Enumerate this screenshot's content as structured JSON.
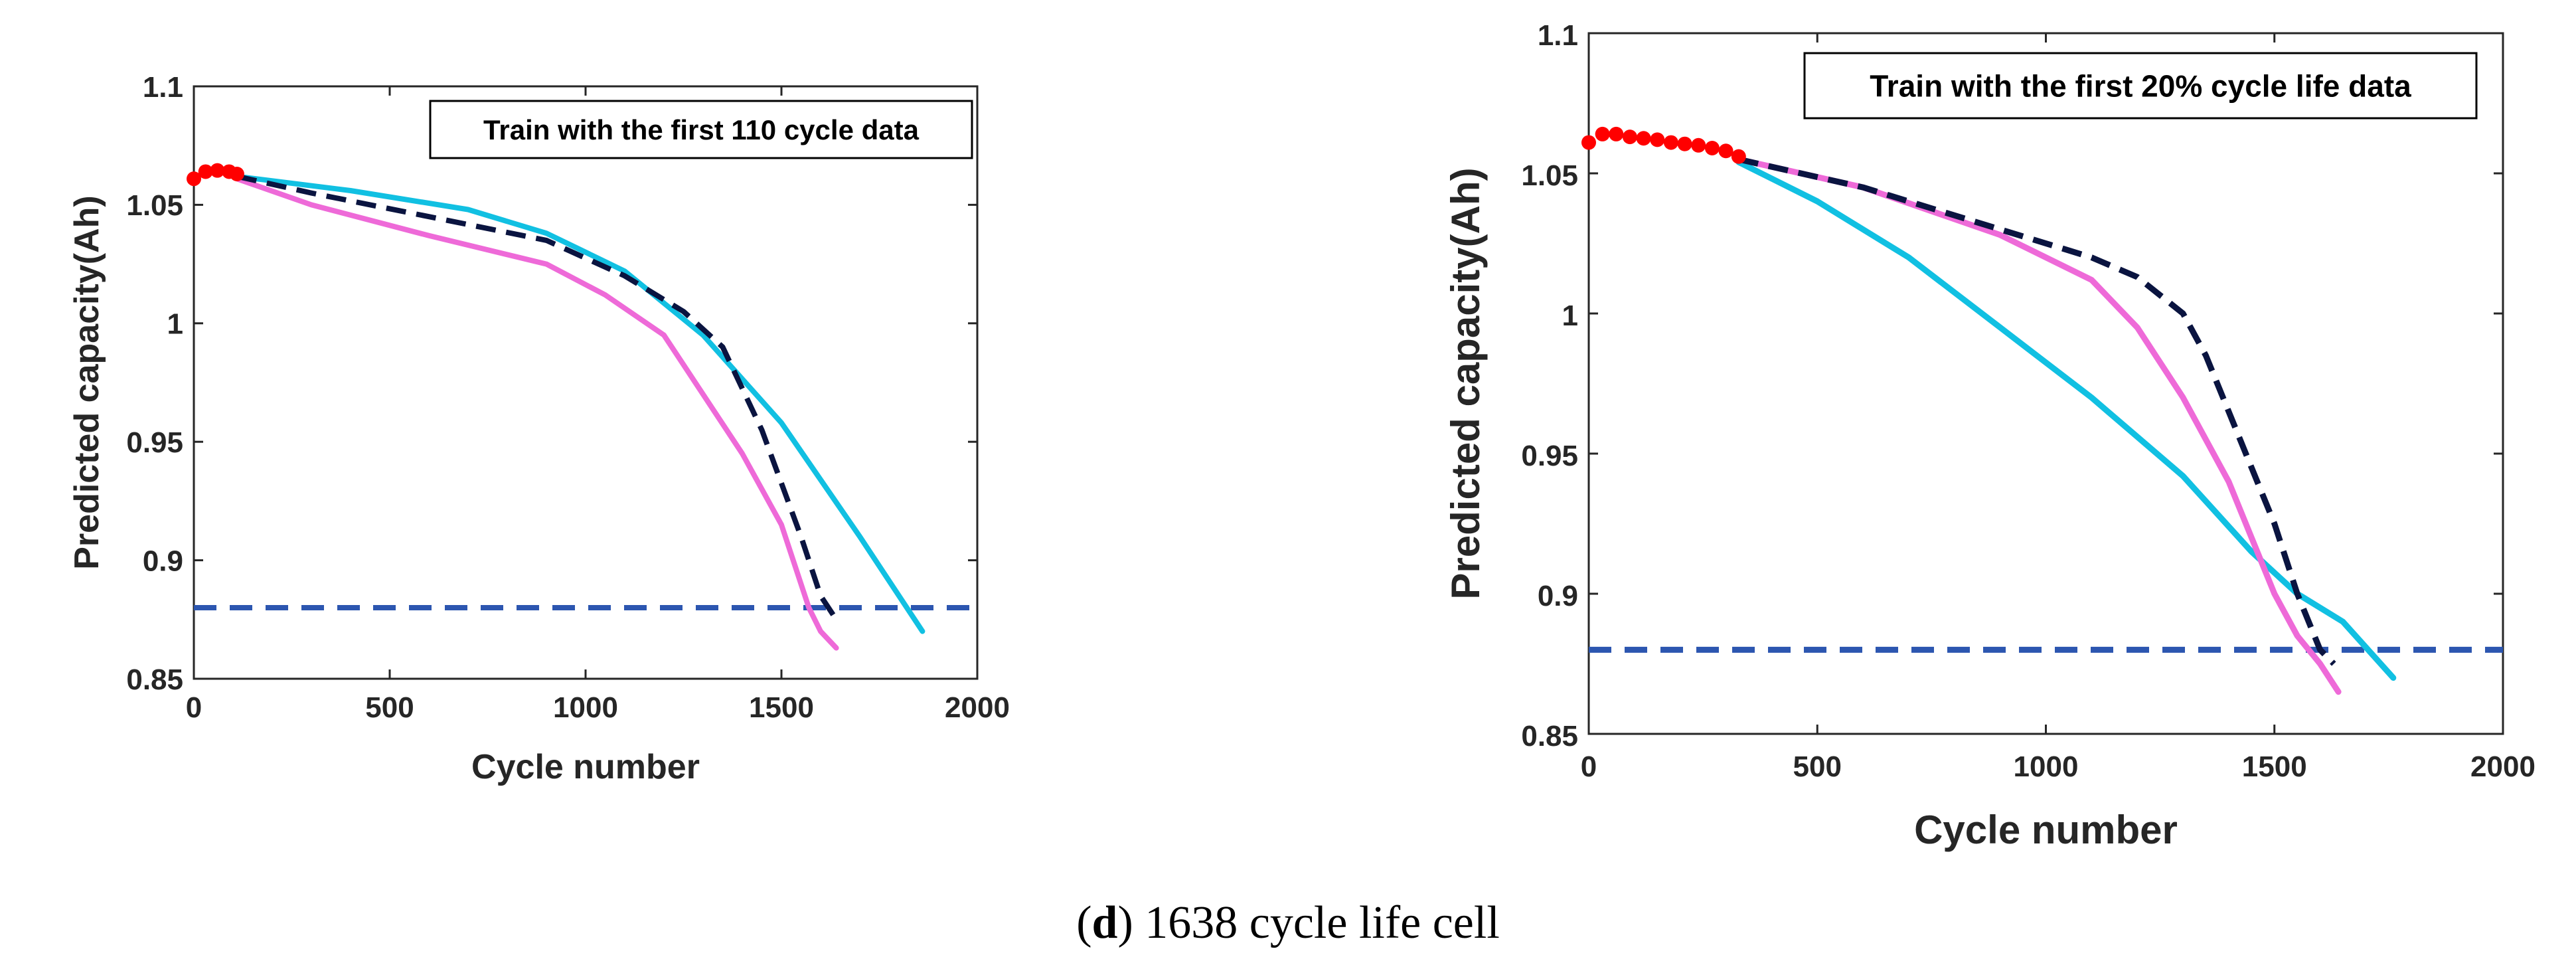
{
  "caption": {
    "letter": "d",
    "open": "(",
    "close": ")",
    "rest": " 1638 cycle life cell"
  },
  "colors": {
    "actual": "#0a1440",
    "pink": "#ee6ad8",
    "cyan": "#11c0e2",
    "threshold": "#2c56b0",
    "history": "#ff0000",
    "axis": "#262626"
  },
  "chart_data": [
    {
      "type": "line",
      "title": "",
      "annotation": "Train with the first 110 cycle data",
      "xlabel": "Cycle number",
      "ylabel": "Predicted capacity(Ah)",
      "xlim": [
        0,
        2000
      ],
      "ylim": [
        0.85,
        1.1
      ],
      "xticks": [
        0,
        500,
        1000,
        1500,
        2000
      ],
      "xtick_labels": [
        "0",
        "500",
        "1000",
        "1500",
        "2000"
      ],
      "yticks": [
        0.85,
        0.9,
        0.95,
        1.0,
        1.05,
        1.1
      ],
      "ytick_labels": [
        "0.85",
        "0.9",
        "0.95",
        "1",
        "1.05",
        "1.1"
      ],
      "threshold": 0.88,
      "history_points": {
        "x": [
          0,
          30,
          60,
          90,
          110
        ],
        "y": [
          1.061,
          1.064,
          1.0645,
          1.064,
          1.063
        ]
      },
      "series": [
        {
          "name": "actual",
          "style": "dashed",
          "x": [
            110,
            300,
            600,
            900,
            1100,
            1250,
            1350,
            1450,
            1550,
            1600,
            1640
          ],
          "y": [
            1.062,
            1.055,
            1.045,
            1.035,
            1.02,
            1.005,
            0.99,
            0.955,
            0.91,
            0.885,
            0.875
          ]
        },
        {
          "name": "prediction-pink",
          "style": "solid",
          "x": [
            110,
            300,
            600,
            900,
            1050,
            1200,
            1300,
            1400,
            1500,
            1570,
            1600,
            1640
          ],
          "y": [
            1.061,
            1.05,
            1.037,
            1.025,
            1.012,
            0.995,
            0.97,
            0.945,
            0.915,
            0.88,
            0.87,
            0.863
          ]
        },
        {
          "name": "prediction-cyan",
          "style": "solid",
          "x": [
            110,
            400,
            700,
            900,
            1100,
            1300,
            1500,
            1700,
            1860
          ],
          "y": [
            1.062,
            1.056,
            1.048,
            1.038,
            1.022,
            0.995,
            0.958,
            0.91,
            0.87
          ]
        }
      ]
    },
    {
      "type": "line",
      "title": "",
      "annotation": "Train with the first 20% cycle life data",
      "xlabel": "Cycle number",
      "ylabel": "Predicted capacity(Ah)",
      "xlim": [
        0,
        2000
      ],
      "ylim": [
        0.85,
        1.1
      ],
      "xticks": [
        0,
        500,
        1000,
        1500,
        2000
      ],
      "xtick_labels": [
        "0",
        "500",
        "1000",
        "1500",
        "2000"
      ],
      "yticks": [
        0.85,
        0.9,
        0.95,
        1.0,
        1.05,
        1.1
      ],
      "ytick_labels": [
        "0.85",
        "0.9",
        "0.95",
        "1",
        "1.05",
        "1.1"
      ],
      "threshold": 0.88,
      "history_points": {
        "x": [
          0,
          30,
          60,
          90,
          120,
          150,
          180,
          210,
          240,
          270,
          300,
          328
        ],
        "y": [
          1.061,
          1.064,
          1.064,
          1.063,
          1.0625,
          1.062,
          1.061,
          1.0605,
          1.06,
          1.059,
          1.058,
          1.056
        ]
      },
      "series": [
        {
          "name": "actual",
          "style": "dashed",
          "x": [
            328,
            600,
            900,
            1100,
            1200,
            1300,
            1350,
            1400,
            1450,
            1500,
            1550,
            1600,
            1630
          ],
          "y": [
            1.055,
            1.045,
            1.03,
            1.02,
            1.013,
            1.0,
            0.985,
            0.965,
            0.945,
            0.925,
            0.9,
            0.88,
            0.875
          ]
        },
        {
          "name": "prediction-pink",
          "style": "solid",
          "x": [
            328,
            600,
            900,
            1100,
            1200,
            1300,
            1400,
            1450,
            1500,
            1550,
            1600,
            1640
          ],
          "y": [
            1.055,
            1.045,
            1.028,
            1.012,
            0.995,
            0.97,
            0.94,
            0.92,
            0.9,
            0.885,
            0.875,
            0.865
          ]
        },
        {
          "name": "prediction-cyan",
          "style": "solid",
          "x": [
            328,
            500,
            700,
            900,
            1100,
            1300,
            1450,
            1550,
            1650,
            1760
          ],
          "y": [
            1.054,
            1.04,
            1.02,
            0.995,
            0.97,
            0.942,
            0.915,
            0.9,
            0.89,
            0.87
          ]
        }
      ]
    }
  ]
}
